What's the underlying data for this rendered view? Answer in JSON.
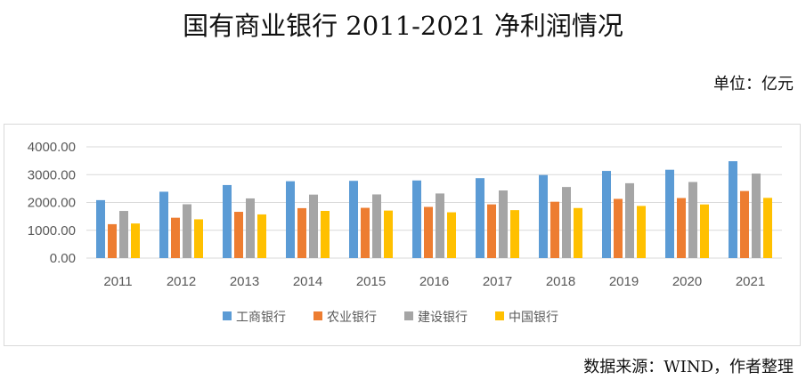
{
  "chart_data": {
    "type": "bar",
    "title": "国有商业银行 2011-2021 净利润情况",
    "unit": "单位：亿元",
    "source": "数据来源：WIND，作者整理",
    "categories": [
      "2011",
      "2012",
      "2013",
      "2014",
      "2015",
      "2016",
      "2017",
      "2018",
      "2019",
      "2020",
      "2021"
    ],
    "ylim": [
      0,
      4000
    ],
    "yticks": [
      "0.00",
      "1000.00",
      "2000.00",
      "3000.00",
      "4000.00"
    ],
    "legend_position": "bottom",
    "series": [
      {
        "name": "工商银行",
        "color": "#5b9bd5",
        "values": [
          2084,
          2386,
          2626,
          2763,
          2777,
          2791,
          2874,
          2987,
          3134,
          3177,
          3483
        ]
      },
      {
        "name": "农业银行",
        "color": "#ed7d31",
        "values": [
          1219,
          1451,
          1663,
          1795,
          1807,
          1840,
          1931,
          2026,
          2129,
          2159,
          2411
        ]
      },
      {
        "name": "建设银行",
        "color": "#a5a5a5",
        "values": [
          1695,
          1936,
          2146,
          2282,
          2289,
          2323,
          2432,
          2556,
          2692,
          2736,
          3039
        ]
      },
      {
        "name": "中国银行",
        "color": "#ffc000",
        "values": [
          1244,
          1394,
          1570,
          1696,
          1708,
          1646,
          1724,
          1800,
          1875,
          1929,
          2165
        ]
      }
    ]
  }
}
